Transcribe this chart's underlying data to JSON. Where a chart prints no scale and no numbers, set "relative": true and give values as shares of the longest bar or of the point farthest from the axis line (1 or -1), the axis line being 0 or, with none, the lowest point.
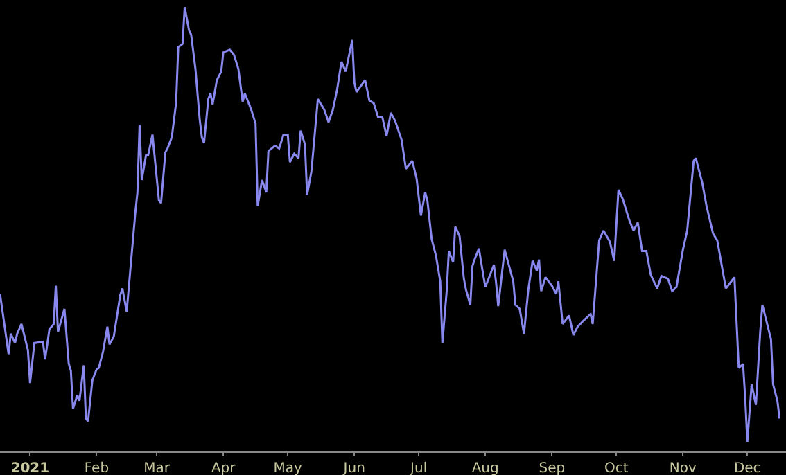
{
  "chart_data": {
    "type": "line",
    "relative": true,
    "grid": false,
    "marker": "none",
    "line_style": "solid",
    "xlim": [
      "2020-12-18",
      "2021-12-19"
    ],
    "xticks": [
      {
        "value": "2021-01-01",
        "label": "2021"
      },
      {
        "value": "2021-02-01",
        "label": "Feb"
      },
      {
        "value": "2021-03-01",
        "label": "Mar"
      },
      {
        "value": "2021-04-01",
        "label": "Apr"
      },
      {
        "value": "2021-05-01",
        "label": "May"
      },
      {
        "value": "2021-06-01",
        "label": "Jun"
      },
      {
        "value": "2021-07-01",
        "label": "Jul"
      },
      {
        "value": "2021-08-01",
        "label": "Aug"
      },
      {
        "value": "2021-09-01",
        "label": "Sep"
      },
      {
        "value": "2021-10-01",
        "label": "Oct"
      },
      {
        "value": "2021-11-01",
        "label": "Nov"
      },
      {
        "value": "2021-12-01",
        "label": "Dec"
      }
    ],
    "x": [
      "2020-12-18",
      "2020-12-22",
      "2020-12-23",
      "2020-12-25",
      "2020-12-26",
      "2020-12-28",
      "2020-12-31",
      "2021-01-01",
      "2021-01-03",
      "2021-01-07",
      "2021-01-08",
      "2021-01-10",
      "2021-01-12",
      "2021-01-13",
      "2021-01-14",
      "2021-01-17",
      "2021-01-19",
      "2021-01-20",
      "2021-01-21",
      "2021-01-23",
      "2021-01-24",
      "2021-01-26",
      "2021-01-27",
      "2021-01-28",
      "2021-01-30",
      "2021-02-01",
      "2021-02-02",
      "2021-02-04",
      "2021-02-06",
      "2021-02-07",
      "2021-02-09",
      "2021-02-12",
      "2021-02-13",
      "2021-02-15",
      "2021-02-19",
      "2021-02-20",
      "2021-02-21",
      "2021-02-22",
      "2021-02-24",
      "2021-02-25",
      "2021-02-27",
      "2021-03-02",
      "2021-03-03",
      "2021-03-05",
      "2021-03-06",
      "2021-03-08",
      "2021-03-10",
      "2021-03-11",
      "2021-03-13",
      "2021-03-14",
      "2021-03-16",
      "2021-03-17",
      "2021-03-19",
      "2021-03-21",
      "2021-03-22",
      "2021-03-23",
      "2021-03-25",
      "2021-03-26",
      "2021-03-27",
      "2021-03-29",
      "2021-03-31",
      "2021-04-01",
      "2021-04-04",
      "2021-04-06",
      "2021-04-08",
      "2021-04-10",
      "2021-04-11",
      "2021-04-14",
      "2021-04-16",
      "2021-04-17",
      "2021-04-19",
      "2021-04-21",
      "2021-04-22",
      "2021-04-25",
      "2021-04-27",
      "2021-04-29",
      "2021-05-01",
      "2021-05-02",
      "2021-05-04",
      "2021-05-06",
      "2021-05-07",
      "2021-05-09",
      "2021-05-10",
      "2021-05-12",
      "2021-05-14",
      "2021-05-15",
      "2021-05-18",
      "2021-05-20",
      "2021-05-22",
      "2021-05-24",
      "2021-05-26",
      "2021-05-28",
      "2021-05-31",
      "2021-06-01",
      "2021-06-02",
      "2021-06-06",
      "2021-06-08",
      "2021-06-10",
      "2021-06-12",
      "2021-06-14",
      "2021-06-16",
      "2021-06-18",
      "2021-06-20",
      "2021-06-23",
      "2021-06-25",
      "2021-06-28",
      "2021-06-30",
      "2021-07-02",
      "2021-07-04",
      "2021-07-05",
      "2021-07-07",
      "2021-07-09",
      "2021-07-11",
      "2021-07-12",
      "2021-07-14",
      "2021-07-15",
      "2021-07-17",
      "2021-07-18",
      "2021-07-20",
      "2021-07-22",
      "2021-07-23",
      "2021-07-25",
      "2021-07-26",
      "2021-07-27",
      "2021-07-29",
      "2021-07-31",
      "2021-08-01",
      "2021-08-05",
      "2021-08-06",
      "2021-08-07",
      "2021-08-10",
      "2021-08-14",
      "2021-08-15",
      "2021-08-17",
      "2021-08-19",
      "2021-08-21",
      "2021-08-23",
      "2021-08-25",
      "2021-08-26",
      "2021-08-27",
      "2021-08-29",
      "2021-09-01",
      "2021-09-03",
      "2021-09-04",
      "2021-09-06",
      "2021-09-09",
      "2021-09-11",
      "2021-09-13",
      "2021-09-16",
      "2021-09-19",
      "2021-09-20",
      "2021-09-23",
      "2021-09-25",
      "2021-09-28",
      "2021-09-30",
      "2021-10-02",
      "2021-10-04",
      "2021-10-07",
      "2021-10-09",
      "2021-10-11",
      "2021-10-13",
      "2021-10-15",
      "2021-10-17",
      "2021-10-20",
      "2021-10-22",
      "2021-10-25",
      "2021-10-27",
      "2021-10-29",
      "2021-11-01",
      "2021-11-03",
      "2021-11-06",
      "2021-11-07",
      "2021-11-10",
      "2021-11-12",
      "2021-11-15",
      "2021-11-17",
      "2021-11-21",
      "2021-11-25",
      "2021-11-27",
      "2021-11-29",
      "2021-11-30",
      "2021-12-01",
      "2021-12-03",
      "2021-12-05",
      "2021-12-07",
      "2021-12-08",
      "2021-12-12",
      "2021-12-13",
      "2021-12-15",
      "2021-12-16"
    ],
    "series": [
      {
        "color": "#8888ee",
        "values": [
          0.355,
          0.219,
          0.265,
          0.244,
          0.265,
          0.287,
          0.228,
          0.154,
          0.244,
          0.247,
          0.207,
          0.275,
          0.287,
          0.373,
          0.269,
          0.321,
          0.198,
          0.182,
          0.096,
          0.127,
          0.114,
          0.194,
          0.074,
          0.068,
          0.16,
          0.185,
          0.188,
          0.225,
          0.281,
          0.241,
          0.259,
          0.352,
          0.367,
          0.315,
          0.537,
          0.583,
          0.735,
          0.611,
          0.667,
          0.667,
          0.713,
          0.565,
          0.559,
          0.673,
          0.682,
          0.707,
          0.784,
          0.91,
          0.917,
          1.0,
          0.948,
          0.938,
          0.861,
          0.747,
          0.707,
          0.694,
          0.793,
          0.806,
          0.781,
          0.836,
          0.855,
          0.898,
          0.904,
          0.892,
          0.861,
          0.787,
          0.806,
          0.769,
          0.738,
          0.552,
          0.611,
          0.583,
          0.676,
          0.688,
          0.682,
          0.713,
          0.713,
          0.651,
          0.67,
          0.66,
          0.722,
          0.691,
          0.577,
          0.63,
          0.738,
          0.793,
          0.769,
          0.741,
          0.769,
          0.815,
          0.877,
          0.855,
          0.926,
          0.83,
          0.809,
          0.836,
          0.79,
          0.784,
          0.753,
          0.753,
          0.71,
          0.762,
          0.744,
          0.701,
          0.636,
          0.654,
          0.614,
          0.531,
          0.583,
          0.565,
          0.478,
          0.441,
          0.383,
          0.244,
          0.361,
          0.451,
          0.426,
          0.506,
          0.485,
          0.389,
          0.364,
          0.33,
          0.417,
          0.432,
          0.457,
          0.398,
          0.37,
          0.42,
          0.38,
          0.327,
          0.454,
          0.383,
          0.33,
          0.321,
          0.265,
          0.364,
          0.429,
          0.407,
          0.432,
          0.361,
          0.392,
          0.373,
          0.355,
          0.383,
          0.287,
          0.306,
          0.262,
          0.281,
          0.296,
          0.309,
          0.287,
          0.475,
          0.497,
          0.472,
          0.429,
          0.589,
          0.568,
          0.521,
          0.497,
          0.515,
          0.451,
          0.451,
          0.398,
          0.367,
          0.395,
          0.389,
          0.361,
          0.37,
          0.454,
          0.497,
          0.654,
          0.66,
          0.605,
          0.552,
          0.491,
          0.475,
          0.367,
          0.392,
          0.188,
          0.197,
          0.12,
          0.022,
          0.151,
          0.105,
          0.269,
          0.33,
          0.253,
          0.151,
          0.114,
          0.074
        ]
      }
    ]
  }
}
